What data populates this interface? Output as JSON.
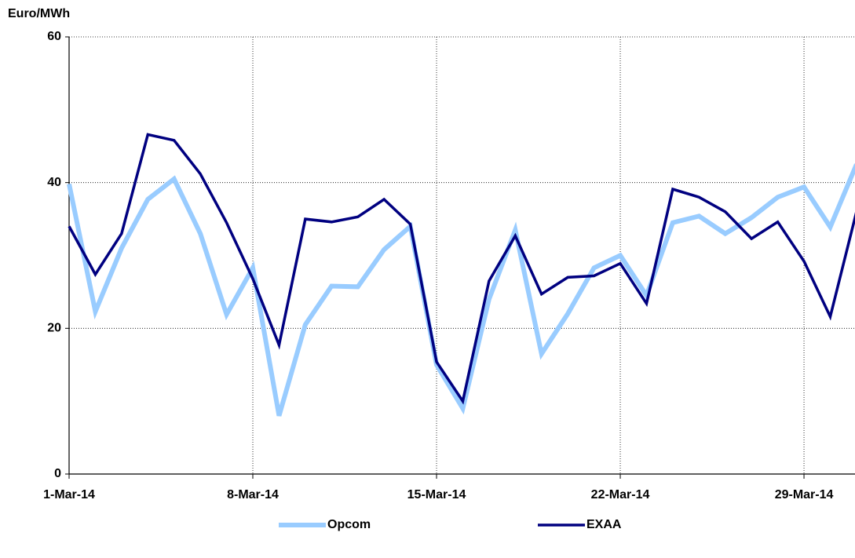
{
  "chart_data": {
    "type": "line",
    "y_label": "Euro/MWh",
    "categories": [
      "1-Mar-14",
      null,
      null,
      null,
      null,
      null,
      null,
      "8-Mar-14",
      null,
      null,
      null,
      null,
      null,
      null,
      "15-Mar-14",
      null,
      null,
      null,
      null,
      null,
      null,
      "22-Mar-14",
      null,
      null,
      null,
      null,
      null,
      null,
      "29-Mar-14",
      null,
      null
    ],
    "series": [
      {
        "name": "Opcom",
        "color": "#99ccff",
        "width": 6,
        "values": [
          39.8,
          22.3,
          31,
          37.7,
          40.5,
          33,
          21.9,
          28.3,
          8,
          20.5,
          25.8,
          25.7,
          30.8,
          34,
          15,
          9,
          24,
          33.5,
          16.5,
          22,
          28.3,
          30,
          24.5,
          34.5,
          35.4,
          33,
          35.2,
          38,
          39.4,
          33.9,
          42.5
        ]
      },
      {
        "name": "EXAA",
        "color": "#000080",
        "width": 3.5,
        "values": [
          34,
          27.4,
          33,
          46.6,
          45.8,
          41.2,
          34.5,
          26.8,
          17.7,
          35,
          34.6,
          35.3,
          37.7,
          34.3,
          15.4,
          10,
          26.5,
          32.7,
          24.7,
          27,
          27.2,
          28.9,
          23.4,
          39.1,
          38,
          36,
          32.3,
          34.6,
          29.2,
          21.6,
          36
        ]
      }
    ],
    "ylim": [
      0,
      60
    ],
    "yticks": [
      0,
      20,
      40,
      60
    ],
    "grid": true
  }
}
